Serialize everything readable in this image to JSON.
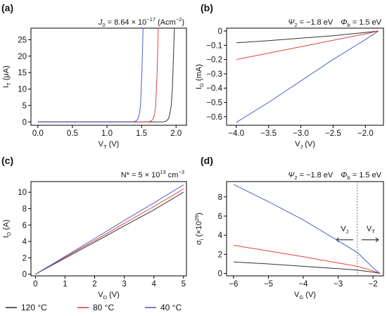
{
  "legend": [
    {
      "label": "120 °C",
      "color": "#333333"
    },
    {
      "label": "80 °C",
      "color": "#e0423c"
    },
    {
      "label": "40 °C",
      "color": "#4a5fc9"
    }
  ],
  "chart_data": [
    {
      "panel": "(a)",
      "type": "line",
      "annotation": {
        "pre": "J",
        "pre_sub": "0",
        "mid": " = 8.64 × 10",
        "sup": "−17",
        "post": " (Acm",
        "post_sup": "−2",
        "tail": ")"
      },
      "xlabel": {
        "main": "V",
        "sub": "T",
        "unit": " (V)"
      },
      "ylabel": {
        "main": "I",
        "sub": "T",
        "unit": " (μA)"
      },
      "xlim": [
        -0.1,
        2.15
      ],
      "ylim": [
        -1,
        28.5
      ],
      "xticks": [
        "0.0",
        "0.5",
        "1.0",
        "1.5",
        "2.0"
      ],
      "xtick_values": [
        0,
        0.5,
        1.0,
        1.5,
        2.0
      ],
      "yticks": [
        "0",
        "5",
        "10",
        "15",
        "20",
        "25"
      ],
      "ytick_values": [
        0,
        5,
        10,
        15,
        20,
        25
      ],
      "grid": false,
      "series": [
        {
          "color": "#333333",
          "x": [
            0,
            1.7,
            1.82,
            1.86,
            1.89,
            1.91,
            1.93,
            1.945,
            1.955,
            1.965,
            1.975
          ],
          "y": [
            0,
            0,
            0.05,
            0.3,
            1,
            2.5,
            5,
            10,
            15,
            22,
            28.5
          ]
        },
        {
          "color": "#e0423c",
          "x": [
            0,
            1.45,
            1.6,
            1.64,
            1.67,
            1.69,
            1.705,
            1.715,
            1.725,
            1.735,
            1.742
          ],
          "y": [
            0,
            0,
            0.05,
            0.3,
            1,
            2.5,
            5,
            10,
            15,
            22,
            28.5
          ]
        },
        {
          "color": "#4a5fc9",
          "x": [
            0,
            1.2,
            1.38,
            1.42,
            1.45,
            1.47,
            1.485,
            1.495,
            1.505,
            1.515,
            1.522
          ],
          "y": [
            0,
            0,
            0.05,
            0.3,
            1,
            2.5,
            5,
            10,
            15,
            22,
            28.5
          ]
        }
      ]
    },
    {
      "panel": "(b)",
      "type": "line",
      "annotation": {
        "psi": "Ψ",
        "psi_sub": "2",
        "psi_val": " = −1.8 eV",
        "phi": "Φ",
        "phi_sub": "b",
        "phi_val": " = 1.5 eV"
      },
      "xlabel": {
        "main": "V",
        "sub": "J",
        "unit": " (V)"
      },
      "ylabel": {
        "main": "I",
        "sub": "G",
        "unit": " (mA)"
      },
      "xlim": [
        -4.15,
        -1.72
      ],
      "ylim": [
        -0.66,
        0.02
      ],
      "xticks": [
        "−4.0",
        "−3.5",
        "−3.0",
        "−2.5",
        "−2.0"
      ],
      "xtick_values": [
        -4.0,
        -3.5,
        -3.0,
        -2.5,
        -2.0
      ],
      "yticks": [
        "0",
        "−0.1",
        "−0.2",
        "−0.3",
        "−0.4",
        "−0.5",
        "−0.6"
      ],
      "ytick_values": [
        0,
        -0.1,
        -0.2,
        -0.3,
        -0.4,
        -0.5,
        -0.6
      ],
      "grid": false,
      "series": [
        {
          "color": "#333333",
          "x": [
            -4.0,
            -3.5,
            -3.0,
            -2.5,
            -2.0,
            -1.8
          ],
          "y": [
            -0.083,
            -0.067,
            -0.05,
            -0.033,
            -0.01,
            0.0
          ]
        },
        {
          "color": "#e0423c",
          "x": [
            -4.0,
            -3.5,
            -3.0,
            -2.5,
            -2.0,
            -1.8
          ],
          "y": [
            -0.2,
            -0.155,
            -0.11,
            -0.065,
            -0.02,
            0.0
          ]
        },
        {
          "color": "#4a5fc9",
          "x": [
            -4.0,
            -3.5,
            -3.0,
            -2.5,
            -2.0,
            -1.8
          ],
          "y": [
            -0.64,
            -0.5,
            -0.35,
            -0.2,
            -0.06,
            0.0
          ]
        }
      ]
    },
    {
      "panel": "(c)",
      "type": "line",
      "annotation": {
        "pre": "N* = 5 × 10",
        "sup": "13",
        "post": " cm",
        "post_sup": "−3"
      },
      "xlabel": {
        "main": "V",
        "sub": "D",
        "unit": " (V)"
      },
      "ylabel": {
        "main": "I",
        "sub": "D",
        "unit": " (A)"
      },
      "xlim": [
        -0.15,
        5.1
      ],
      "ylim": [
        -0.2,
        11.3
      ],
      "xticks": [
        "0",
        "1",
        "2",
        "3",
        "4",
        "5"
      ],
      "xtick_values": [
        0,
        1,
        2,
        3,
        4,
        5
      ],
      "yticks": [
        "0",
        "2",
        "4",
        "6",
        "8",
        "10"
      ],
      "ytick_values": [
        0,
        2,
        4,
        6,
        8,
        10
      ],
      "grid": false,
      "series": [
        {
          "color": "#333333",
          "x": [
            0,
            1,
            2,
            3,
            4,
            5
          ],
          "y": [
            0,
            1.96,
            3.92,
            5.9,
            7.85,
            10.0
          ]
        },
        {
          "color": "#e0423c",
          "x": [
            0,
            1,
            2,
            3,
            4,
            5
          ],
          "y": [
            0,
            2.07,
            4.12,
            6.2,
            8.25,
            10.4
          ]
        },
        {
          "color": "#4a5fc9",
          "x": [
            0,
            1,
            2,
            3,
            4,
            5
          ],
          "y": [
            0,
            2.17,
            4.35,
            6.55,
            8.7,
            10.9
          ]
        }
      ]
    },
    {
      "panel": "(d)",
      "type": "line",
      "annotation": {
        "psi": "Ψ",
        "psi_sub": "2",
        "psi_val": " = −1.8 eV",
        "phi": "Φ",
        "phi_sub": "b",
        "phi_val": " = 1.5 eV"
      },
      "region_labels": {
        "left": "V",
        "left_sub": "J",
        "right": "V",
        "right_sub": "T",
        "divider_x": -2.45
      },
      "xlabel": {
        "main": "V",
        "sub": "G",
        "unit": " (V)"
      },
      "ylabel": {
        "main": "σ",
        "sub": "i",
        "unit_pre": " (×10",
        "unit_sup": "26",
        "unit_post": ")"
      },
      "xlim": [
        -6.2,
        -1.7
      ],
      "ylim": [
        -0.25,
        9.6
      ],
      "xticks": [
        "−6",
        "−5",
        "−4",
        "−3",
        "−2"
      ],
      "xtick_values": [
        -6,
        -5,
        -4,
        -3,
        -2
      ],
      "yticks": [
        "0",
        "2",
        "4",
        "6",
        "8"
      ],
      "ytick_values": [
        0,
        2,
        4,
        6,
        8
      ],
      "grid": false,
      "series": [
        {
          "color": "#333333",
          "x": [
            -6.0,
            -5.0,
            -4.0,
            -3.0,
            -2.45,
            -2.0,
            -1.8
          ],
          "y": [
            1.2,
            1.0,
            0.75,
            0.5,
            0.35,
            0.15,
            0.0
          ]
        },
        {
          "color": "#e0423c",
          "x": [
            -6.0,
            -5.0,
            -4.0,
            -3.0,
            -2.45,
            -2.0,
            -1.8
          ],
          "y": [
            2.95,
            2.35,
            1.75,
            1.1,
            0.75,
            0.28,
            0.0
          ]
        },
        {
          "color": "#4a5fc9",
          "x": [
            -6.0,
            -5.0,
            -4.0,
            -3.0,
            -2.45,
            -2.0,
            -1.8
          ],
          "y": [
            9.3,
            7.5,
            5.6,
            3.4,
            2.2,
            0.6,
            0.0
          ]
        }
      ]
    }
  ]
}
